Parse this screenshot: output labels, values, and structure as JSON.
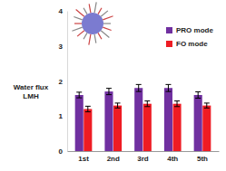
{
  "chart_data": {
    "type": "bar",
    "y_label": "Water flux\nLMH",
    "categories": [
      "1st",
      "2nd",
      "3rd",
      "4th",
      "5th"
    ],
    "series": [
      {
        "name": "PRO mode",
        "color": "#7030a0",
        "values": [
          1.6,
          1.7,
          1.8,
          1.8,
          1.6
        ],
        "errors": [
          0.08,
          0.09,
          0.1,
          0.1,
          0.09
        ]
      },
      {
        "name": "FO mode",
        "color": "#ee1c24",
        "values": [
          1.2,
          1.3,
          1.35,
          1.35,
          1.3
        ],
        "errors": [
          0.08,
          0.07,
          0.08,
          0.08,
          0.07
        ]
      }
    ],
    "ylim": [
      0,
      4
    ],
    "yticks": [
      0,
      1,
      2,
      3,
      4
    ],
    "grid": false,
    "legend": "upper right"
  }
}
